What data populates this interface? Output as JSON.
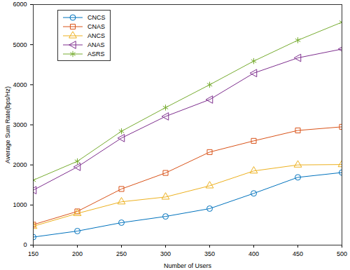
{
  "chart_data": {
    "type": "line",
    "x_label": "Number of Users",
    "y_label": "Average Sum Rate(bps/Hz)",
    "x": [
      150,
      200,
      250,
      300,
      350,
      400,
      450,
      500
    ],
    "xlim": [
      150,
      500
    ],
    "xticks": [
      150,
      200,
      250,
      300,
      350,
      400,
      450,
      500
    ],
    "ylim": [
      0,
      6000
    ],
    "yticks": [
      0,
      1000,
      2000,
      3000,
      4000,
      5000,
      6000
    ],
    "grid": false,
    "legend": "upper left",
    "series": [
      {
        "name": "CNCS",
        "color": "#0072bd",
        "marker": "circle",
        "values": [
          200,
          350,
          560,
          715,
          910,
          1290,
          1690,
          1810
        ]
      },
      {
        "name": "CNAS",
        "color": "#d95319",
        "marker": "square",
        "values": [
          510,
          840,
          1400,
          1800,
          2320,
          2600,
          2860,
          2950
        ]
      },
      {
        "name": "ANCS",
        "color": "#edb120",
        "marker": "triangle",
        "values": [
          470,
          790,
          1080,
          1200,
          1480,
          1850,
          2000,
          2010
        ]
      },
      {
        "name": "ANAS",
        "color": "#7e2f8e",
        "marker": "triangle-left",
        "values": [
          1370,
          1950,
          2670,
          3210,
          3630,
          4290,
          4670,
          4890
        ]
      },
      {
        "name": "ASRS",
        "color": "#77ac30",
        "marker": "asterisk",
        "values": [
          1620,
          2090,
          2840,
          3430,
          4000,
          4590,
          5110,
          5560
        ]
      }
    ]
  }
}
